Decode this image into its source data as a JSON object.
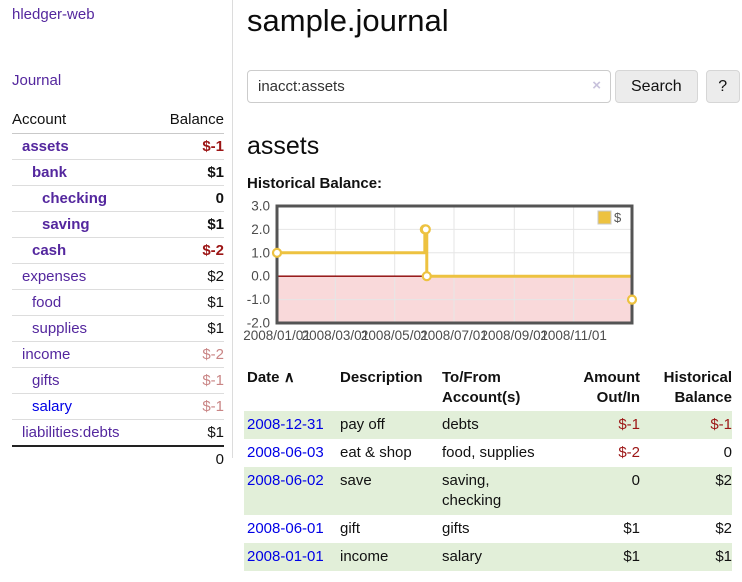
{
  "brand": "hledger-web",
  "sidebar": {
    "journal_link": "Journal",
    "accounts_table": {
      "account_header": "Account",
      "balance_header": "Balance",
      "rows": [
        {
          "name": "assets",
          "depth": 0,
          "bold": true,
          "link": "purple",
          "balance": "$-1",
          "balance_style": "neg-strong"
        },
        {
          "name": "bank",
          "depth": 1,
          "bold": true,
          "link": "purple",
          "balance": "$1",
          "balance_style": "pos"
        },
        {
          "name": "checking",
          "depth": 2,
          "bold": true,
          "link": "purple",
          "balance": "0",
          "balance_style": "pos"
        },
        {
          "name": "saving",
          "depth": 2,
          "bold": true,
          "link": "purple",
          "balance": "$1",
          "balance_style": "pos"
        },
        {
          "name": "cash",
          "depth": 1,
          "bold": true,
          "link": "purple",
          "balance": "$-2",
          "balance_style": "neg-strong"
        },
        {
          "name": "expenses",
          "depth": 0,
          "bold": false,
          "link": "purple",
          "balance": "$2",
          "balance_style": "pos"
        },
        {
          "name": "food",
          "depth": 1,
          "bold": false,
          "link": "purple",
          "balance": "$1",
          "balance_style": "pos"
        },
        {
          "name": "supplies",
          "depth": 1,
          "bold": false,
          "link": "purple",
          "balance": "$1",
          "balance_style": "pos"
        },
        {
          "name": "income",
          "depth": 0,
          "bold": false,
          "link": "purple",
          "balance": "$-2",
          "balance_style": "neg-soft"
        },
        {
          "name": "gifts",
          "depth": 1,
          "bold": false,
          "link": "purple",
          "balance": "$-1",
          "balance_style": "neg-soft"
        },
        {
          "name": "salary",
          "depth": 1,
          "bold": false,
          "link": "blue",
          "balance": "$-1",
          "balance_style": "neg-soft"
        },
        {
          "name": "liabilities:debts",
          "depth": 0,
          "bold": false,
          "link": "purple",
          "balance": "$1",
          "balance_style": "pos"
        }
      ],
      "total": "0"
    }
  },
  "header": {
    "title": "sample.journal"
  },
  "search": {
    "value": "inacct:assets",
    "clear_icon": "×",
    "button_label": "Search",
    "help_label": "?"
  },
  "account_page": {
    "heading": "assets",
    "chart_label": "Historical Balance:"
  },
  "chart_data": {
    "type": "line",
    "title": "Historical Balance",
    "step": true,
    "legend_label": "$",
    "legend_position": "top-right",
    "grid": true,
    "xlim_days": [
      0,
      365
    ],
    "ylim": [
      -2,
      3
    ],
    "y_ticks": [
      {
        "label": "3.0",
        "value": 3
      },
      {
        "label": "2.0",
        "value": 2
      },
      {
        "label": "1.0",
        "value": 1
      },
      {
        "label": "0.0",
        "value": 0
      },
      {
        "label": "-1.0",
        "value": -1
      },
      {
        "label": "-2.0",
        "value": -2
      }
    ],
    "x_ticks": [
      {
        "label": "2008/01/01",
        "day": 0
      },
      {
        "label": "2008/03/01",
        "day": 60
      },
      {
        "label": "2008/05/01",
        "day": 121
      },
      {
        "label": "2008/07/01",
        "day": 182
      },
      {
        "label": "2008/09/01",
        "day": 244
      },
      {
        "label": "2008/11/01",
        "day": 305
      }
    ],
    "series": [
      {
        "name": "$",
        "color": "#edc240",
        "points": [
          {
            "date": "2008-01-01",
            "day": 0,
            "value": 1
          },
          {
            "date": "2008-06-01",
            "day": 152,
            "value": 2
          },
          {
            "date": "2008-06-02",
            "day": 153,
            "value": 2
          },
          {
            "date": "2008-06-03",
            "day": 154,
            "value": 0
          },
          {
            "date": "2008-12-31",
            "day": 365,
            "value": -1
          }
        ]
      }
    ],
    "colors": {
      "negative_region": "#f9d9da",
      "zero_line": "#8b0000",
      "grid": "#e6e6e6",
      "plot_border": "#545454",
      "tick_text": "#4c4c4c"
    }
  },
  "register_table": {
    "date_header": "Date",
    "sort_icon": "∧",
    "description_header": "Description",
    "accounts_header": "To/From Account(s)",
    "amount_header": "Amount Out/In",
    "balance_header": "Historical Balance",
    "rows": [
      {
        "date": "2008-12-31",
        "description": "pay off",
        "accounts": "debts",
        "amount": "$-1",
        "amount_neg": true,
        "balance": "$-1",
        "balance_neg": true,
        "stripe": true
      },
      {
        "date": "2008-06-03",
        "description": "eat & shop",
        "accounts": "food, supplies",
        "amount": "$-2",
        "amount_neg": true,
        "balance": "0",
        "balance_neg": false,
        "stripe": false
      },
      {
        "date": "2008-06-02",
        "description": "save",
        "accounts": "saving, checking",
        "amount": "0",
        "amount_neg": false,
        "balance": "$2",
        "balance_neg": false,
        "stripe": true
      },
      {
        "date": "2008-06-01",
        "description": "gift",
        "accounts": "gifts",
        "amount": "$1",
        "amount_neg": false,
        "balance": "$2",
        "balance_neg": false,
        "stripe": false
      },
      {
        "date": "2008-01-01",
        "description": "income",
        "accounts": "salary",
        "amount": "$1",
        "amount_neg": false,
        "balance": "$1",
        "balance_neg": false,
        "stripe": true
      }
    ]
  }
}
